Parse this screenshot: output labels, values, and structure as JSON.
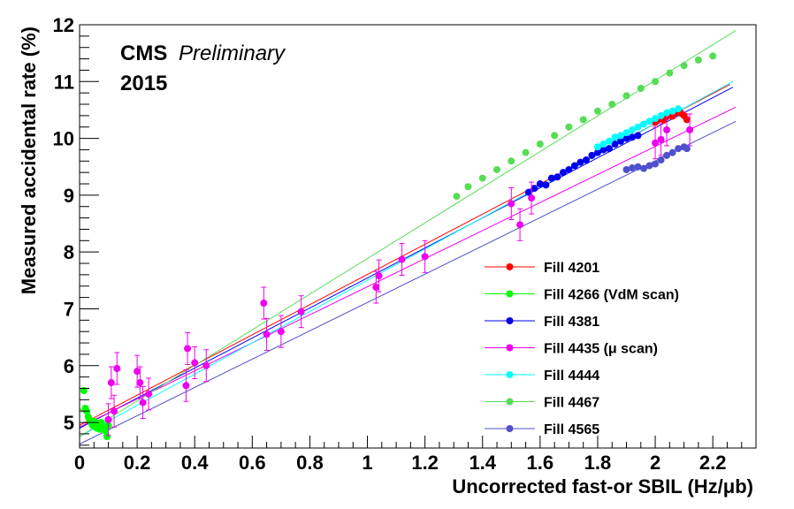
{
  "chart_data": {
    "type": "scatter",
    "title": "",
    "xlabel": "Uncorrected fast-or SBIL (Hz/μb)",
    "ylabel": "Measured accidental rate (%)",
    "xlim": [
      0,
      2.35
    ],
    "ylim": [
      4.55,
      12
    ],
    "x_ticks": [
      0,
      0.2,
      0.4,
      0.6,
      0.8,
      1,
      1.2,
      1.4,
      1.6,
      1.8,
      2,
      2.2
    ],
    "x_tick_labels": [
      "0",
      "0.2",
      "0.4",
      "0.6",
      "0.8",
      "1",
      "1.2",
      "1.4",
      "1.6",
      "1.8",
      "2",
      "2.2"
    ],
    "y_ticks": [
      5,
      6,
      7,
      8,
      9,
      10,
      11,
      12
    ],
    "y_tick_labels": [
      "5",
      "6",
      "7",
      "8",
      "9",
      "10",
      "11",
      "12"
    ],
    "annotation": {
      "experiment": "CMS",
      "status": "Preliminary",
      "year": "2015"
    },
    "legend_position": "bottom-right",
    "series": [
      {
        "name": "Fill 4201",
        "color": "#ff0000",
        "points": [
          [
            2.0,
            10.28
          ],
          [
            2.01,
            10.33
          ],
          [
            2.02,
            10.36
          ],
          [
            2.03,
            10.32
          ],
          [
            2.04,
            10.38
          ],
          [
            2.05,
            10.41
          ],
          [
            2.06,
            10.39
          ],
          [
            2.07,
            10.45
          ],
          [
            2.08,
            10.48
          ],
          [
            2.09,
            10.44
          ],
          [
            2.1,
            10.4
          ],
          [
            2.11,
            10.33
          ]
        ],
        "fit": [
          [
            0,
            4.95
          ],
          [
            2.26,
            10.95
          ]
        ]
      },
      {
        "name": "Fill 4266 (VdM scan)",
        "color": "#00ff00",
        "points": [
          [
            0.015,
            5.56
          ],
          [
            0.02,
            5.25
          ],
          [
            0.025,
            5.2
          ],
          [
            0.03,
            5.1
          ],
          [
            0.035,
            5.05
          ],
          [
            0.04,
            5.0
          ],
          [
            0.045,
            4.95
          ],
          [
            0.05,
            5.02
          ],
          [
            0.055,
            4.92
          ],
          [
            0.06,
            4.9
          ],
          [
            0.065,
            4.98
          ],
          [
            0.07,
            4.88
          ],
          [
            0.075,
            5.0
          ],
          [
            0.08,
            4.93
          ],
          [
            0.085,
            4.9
          ],
          [
            0.09,
            4.85
          ],
          [
            0.095,
            4.75
          ],
          [
            0.1,
            4.95
          ]
        ],
        "fit": [
          [
            0,
            5.25
          ],
          [
            0.1,
            4.75
          ]
        ]
      },
      {
        "name": "Fill 4381",
        "color": "#0000ee",
        "points": [
          [
            1.56,
            9.05
          ],
          [
            1.58,
            9.12
          ],
          [
            1.6,
            9.2
          ],
          [
            1.62,
            9.18
          ],
          [
            1.64,
            9.3
          ],
          [
            1.66,
            9.32
          ],
          [
            1.68,
            9.4
          ],
          [
            1.7,
            9.45
          ],
          [
            1.72,
            9.52
          ],
          [
            1.74,
            9.58
          ],
          [
            1.76,
            9.62
          ],
          [
            1.78,
            9.7
          ],
          [
            1.8,
            9.75
          ],
          [
            1.82,
            9.8
          ],
          [
            1.84,
            9.82
          ],
          [
            1.86,
            9.9
          ],
          [
            1.88,
            9.95
          ],
          [
            1.9,
            10.0
          ],
          [
            1.92,
            10.02
          ],
          [
            1.94,
            10.05
          ]
        ],
        "fit": [
          [
            0,
            4.9
          ],
          [
            2.27,
            10.9
          ]
        ]
      },
      {
        "name": "Fill 4435 (μ scan)",
        "color": "#ee00ee",
        "points": [
          [
            0.1,
            5.05
          ],
          [
            0.11,
            5.7
          ],
          [
            0.12,
            5.2
          ],
          [
            0.13,
            5.95
          ],
          [
            0.2,
            5.9
          ],
          [
            0.21,
            5.7
          ],
          [
            0.22,
            5.35
          ],
          [
            0.24,
            5.5
          ],
          [
            0.37,
            5.65
          ],
          [
            0.375,
            6.3
          ],
          [
            0.4,
            6.05
          ],
          [
            0.44,
            6.0
          ],
          [
            0.64,
            7.1
          ],
          [
            0.65,
            6.55
          ],
          [
            0.7,
            6.6
          ],
          [
            0.77,
            6.95
          ],
          [
            1.03,
            7.38
          ],
          [
            1.04,
            7.58
          ],
          [
            1.12,
            7.87
          ],
          [
            1.2,
            7.92
          ],
          [
            1.5,
            8.85
          ],
          [
            1.53,
            8.48
          ],
          [
            1.57,
            8.95
          ],
          [
            2.0,
            9.92
          ],
          [
            2.02,
            9.98
          ],
          [
            2.04,
            10.15
          ],
          [
            2.12,
            10.15
          ]
        ],
        "fit": [
          [
            0,
            4.92
          ],
          [
            2.28,
            10.55
          ]
        ]
      },
      {
        "name": "Fill 4444",
        "color": "#00ffff",
        "points": [
          [
            1.8,
            9.85
          ],
          [
            1.82,
            9.9
          ],
          [
            1.84,
            9.95
          ],
          [
            1.86,
            10.02
          ],
          [
            1.88,
            10.05
          ],
          [
            1.9,
            10.1
          ],
          [
            1.92,
            10.15
          ],
          [
            1.94,
            10.2
          ],
          [
            1.96,
            10.25
          ],
          [
            1.98,
            10.3
          ],
          [
            2.0,
            10.35
          ],
          [
            2.02,
            10.4
          ],
          [
            2.04,
            10.45
          ],
          [
            2.06,
            10.48
          ],
          [
            2.08,
            10.52
          ]
        ],
        "fit": [
          [
            0,
            4.75
          ],
          [
            2.27,
            11.0
          ]
        ]
      },
      {
        "name": "Fill 4467",
        "color": "#55dd55",
        "points": [
          [
            1.31,
            8.98
          ],
          [
            1.35,
            9.15
          ],
          [
            1.4,
            9.3
          ],
          [
            1.45,
            9.45
          ],
          [
            1.5,
            9.6
          ],
          [
            1.55,
            9.75
          ],
          [
            1.6,
            9.9
          ],
          [
            1.65,
            10.05
          ],
          [
            1.7,
            10.2
          ],
          [
            1.75,
            10.33
          ],
          [
            1.8,
            10.48
          ],
          [
            1.85,
            10.6
          ],
          [
            1.9,
            10.75
          ],
          [
            1.95,
            10.88
          ],
          [
            2.0,
            11.0
          ],
          [
            2.05,
            11.15
          ],
          [
            2.1,
            11.28
          ],
          [
            2.15,
            11.38
          ],
          [
            2.2,
            11.45
          ]
        ],
        "fit": [
          [
            0,
            4.75
          ],
          [
            2.28,
            11.9
          ]
        ]
      },
      {
        "name": "Fill 4565",
        "color": "#5050cc",
        "points": [
          [
            1.9,
            9.45
          ],
          [
            1.92,
            9.48
          ],
          [
            1.94,
            9.5
          ],
          [
            1.96,
            9.47
          ],
          [
            1.98,
            9.52
          ],
          [
            2.0,
            9.55
          ],
          [
            2.02,
            9.62
          ],
          [
            2.04,
            9.7
          ],
          [
            2.06,
            9.75
          ],
          [
            2.08,
            9.82
          ],
          [
            2.1,
            9.85
          ],
          [
            2.11,
            9.82
          ]
        ],
        "fit": [
          [
            0,
            4.62
          ],
          [
            2.28,
            10.3
          ]
        ]
      }
    ]
  }
}
